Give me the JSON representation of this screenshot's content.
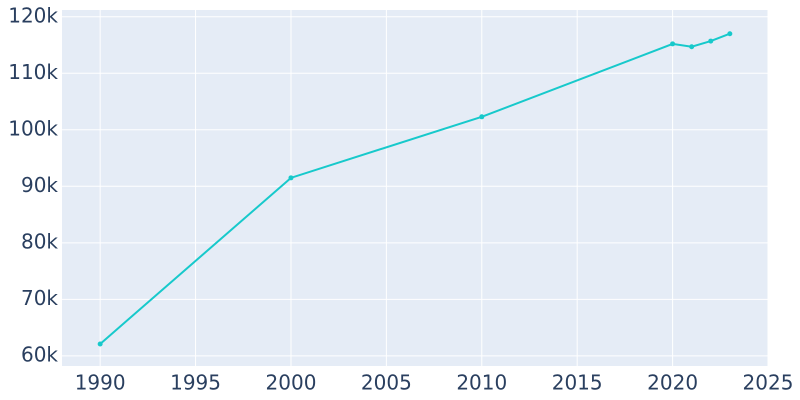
{
  "chart_data": {
    "type": "line",
    "x": [
      1990,
      2000,
      2010,
      2020,
      2021,
      2022,
      2023
    ],
    "series": [
      {
        "color": "#17c9cb",
        "values": [
          62100,
          91500,
          102300,
          115200,
          114700,
          115700,
          117000
        ]
      }
    ],
    "xlim": [
      1988,
      2025
    ],
    "ylim": [
      58200,
      121200
    ],
    "xticks": [
      1990,
      1995,
      2000,
      2005,
      2010,
      2015,
      2020,
      2025
    ],
    "yticks": [
      {
        "value": 60000,
        "label": "60k"
      },
      {
        "value": 70000,
        "label": "70k"
      },
      {
        "value": 80000,
        "label": "80k"
      },
      {
        "value": 90000,
        "label": "90k"
      },
      {
        "value": 100000,
        "label": "100k"
      },
      {
        "value": 110000,
        "label": "110k"
      },
      {
        "value": 120000,
        "label": "120k"
      }
    ],
    "grid": true
  }
}
